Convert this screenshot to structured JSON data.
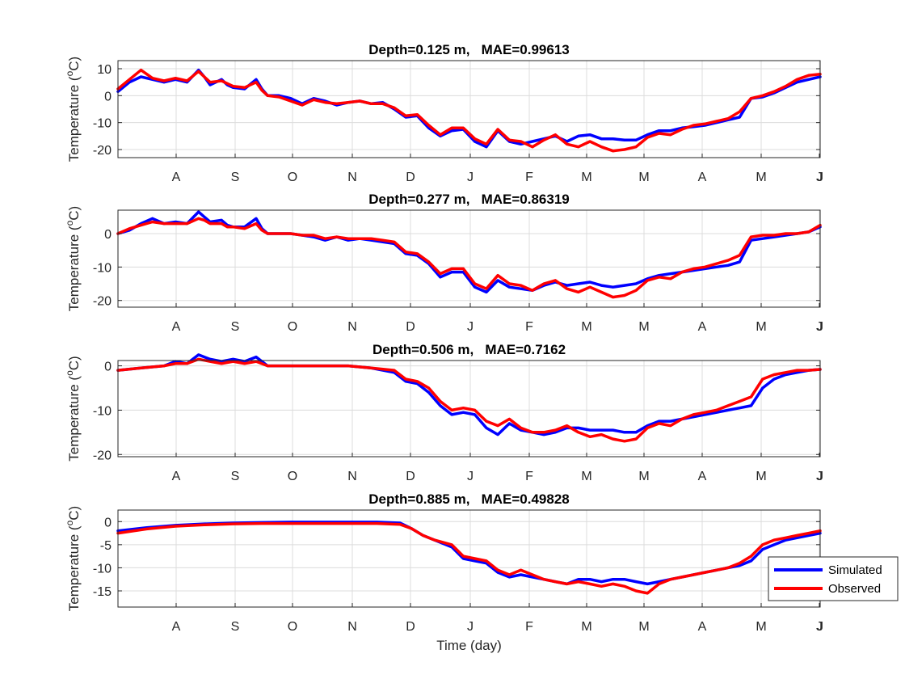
{
  "figure": {
    "xlabel": "Time (day)",
    "month_ticks": [
      "A",
      "S",
      "O",
      "N",
      "D",
      "J",
      "F",
      "M",
      "M",
      "A",
      "M",
      "J",
      "J"
    ],
    "colors": {
      "simulated": "#0000ff",
      "observed": "#ff0000",
      "grid": "#dcdcdc",
      "axes": "#262626"
    }
  },
  "chart_data": [
    {
      "type": "line",
      "title": "Depth=0.125 m,   MAE=0.99613",
      "ylabel": "Temperature (",
      "ylabel_sup": "o",
      "ylabel_end": "C)",
      "xlim": [
        0,
        12.2
      ],
      "ylim": [
        -23,
        13
      ],
      "yticks": [
        10,
        0,
        -10,
        -20
      ],
      "grid": true,
      "series": [
        {
          "name": "Simulated",
          "color": "#0000ff",
          "x": [
            0,
            0.2,
            0.4,
            0.6,
            0.8,
            1,
            1.2,
            1.4,
            1.5,
            1.6,
            1.8,
            1.9,
            2,
            2.2,
            2.4,
            2.5,
            2.6,
            2.8,
            3,
            3.2,
            3.4,
            3.6,
            3.8,
            4,
            4.2,
            4.4,
            4.6,
            4.8,
            5,
            5.2,
            5.4,
            5.6,
            5.8,
            6,
            6.2,
            6.4,
            6.6,
            6.8,
            7,
            7.2,
            7.4,
            7.6,
            7.8,
            8,
            8.2,
            8.4,
            8.6,
            8.8,
            9,
            9.2,
            9.4,
            9.6,
            9.8,
            10,
            10.2,
            10.4,
            10.6,
            10.8,
            11,
            11.2,
            11.4,
            11.6,
            11.8,
            12,
            12.2
          ],
          "y": [
            1.5,
            5,
            7,
            6,
            5,
            6,
            5,
            9.5,
            7,
            4,
            6,
            4,
            3,
            2.5,
            6,
            2.5,
            0,
            0,
            -1,
            -3,
            -1,
            -2,
            -3.5,
            -2.5,
            -2,
            -3,
            -2.5,
            -5,
            -8,
            -7.5,
            -12,
            -15,
            -13,
            -12.5,
            -17,
            -19,
            -13,
            -17,
            -18,
            -17,
            -16,
            -15,
            -17,
            -15,
            -14.5,
            -16,
            -16,
            -16.5,
            -16.5,
            -14.5,
            -13,
            -13,
            -12,
            -11.5,
            -11,
            -10,
            -9,
            -8,
            -1,
            -0.5,
            1,
            3,
            5,
            6,
            7
          ]
        },
        {
          "name": "Observed",
          "color": "#ff0000",
          "x": [
            0,
            0.2,
            0.4,
            0.6,
            0.8,
            1,
            1.2,
            1.4,
            1.5,
            1.6,
            1.8,
            1.9,
            2,
            2.2,
            2.4,
            2.5,
            2.6,
            2.8,
            3,
            3.2,
            3.4,
            3.6,
            3.8,
            4,
            4.2,
            4.4,
            4.6,
            4.8,
            5,
            5.2,
            5.4,
            5.6,
            5.8,
            6,
            6.2,
            6.4,
            6.6,
            6.8,
            7,
            7.2,
            7.4,
            7.6,
            7.8,
            8,
            8.2,
            8.4,
            8.6,
            8.8,
            9,
            9.2,
            9.4,
            9.6,
            9.8,
            10,
            10.2,
            10.4,
            10.6,
            10.8,
            11,
            11.2,
            11.4,
            11.6,
            11.8,
            12,
            12.2
          ],
          "y": [
            2.5,
            6,
            9.5,
            6.5,
            5.5,
            6.5,
            5.5,
            9,
            7,
            5,
            5.5,
            4.5,
            3.5,
            3,
            5,
            2,
            0,
            -0.5,
            -2,
            -3.5,
            -1.5,
            -2.5,
            -3,
            -2.5,
            -2,
            -3,
            -3,
            -4.5,
            -7.5,
            -7,
            -11,
            -14.5,
            -12,
            -12,
            -16,
            -18,
            -12.5,
            -16.5,
            -17,
            -19,
            -16.5,
            -14.5,
            -18,
            -19,
            -17,
            -19,
            -20.5,
            -20,
            -19,
            -15.5,
            -14,
            -14.5,
            -12.5,
            -11,
            -10.5,
            -9.5,
            -8.5,
            -6,
            -1,
            0,
            1.5,
            3.5,
            6,
            7.5,
            8
          ]
        }
      ]
    },
    {
      "type": "line",
      "title": "Depth=0.277 m,   MAE=0.86319",
      "ylabel": "Temperature (",
      "ylabel_sup": "o",
      "ylabel_end": "C)",
      "xlim": [
        0,
        12.2
      ],
      "ylim": [
        -22,
        7
      ],
      "yticks": [
        0,
        -10,
        -20
      ],
      "grid": true,
      "series": [
        {
          "name": "Simulated",
          "color": "#0000ff",
          "x": [
            0,
            0.2,
            0.4,
            0.6,
            0.8,
            1,
            1.2,
            1.4,
            1.5,
            1.6,
            1.8,
            1.9,
            2,
            2.2,
            2.4,
            2.5,
            2.6,
            2.8,
            3,
            3.2,
            3.4,
            3.6,
            3.8,
            4,
            4.2,
            4.4,
            4.6,
            4.8,
            5,
            5.2,
            5.4,
            5.6,
            5.8,
            6,
            6.2,
            6.4,
            6.6,
            6.8,
            7,
            7.2,
            7.4,
            7.6,
            7.8,
            8,
            8.2,
            8.4,
            8.6,
            8.8,
            9,
            9.2,
            9.4,
            9.6,
            9.8,
            10,
            10.2,
            10.4,
            10.6,
            10.8,
            11,
            11.2,
            11.4,
            11.6,
            11.8,
            12,
            12.2
          ],
          "y": [
            0,
            1,
            3,
            4.5,
            3,
            3.5,
            3,
            6.5,
            5,
            3.5,
            4,
            2.5,
            2,
            2,
            4.5,
            1.5,
            0,
            0,
            0,
            -0.5,
            -1,
            -2,
            -1,
            -2,
            -1.5,
            -2,
            -2.5,
            -3,
            -6,
            -6.5,
            -9,
            -13,
            -11.5,
            -11.5,
            -16,
            -17.5,
            -14,
            -16,
            -16.5,
            -17,
            -15.5,
            -14.5,
            -15.5,
            -15,
            -14.5,
            -15.5,
            -16,
            -15.5,
            -15,
            -13.5,
            -12.5,
            -12,
            -11.5,
            -11,
            -10.5,
            -10,
            -9.5,
            -8.5,
            -2,
            -1.5,
            -1,
            -0.5,
            0,
            0.5,
            2
          ]
        },
        {
          "name": "Observed",
          "color": "#ff0000",
          "x": [
            0,
            0.2,
            0.4,
            0.6,
            0.8,
            1,
            1.2,
            1.4,
            1.5,
            1.6,
            1.8,
            1.9,
            2,
            2.2,
            2.4,
            2.5,
            2.6,
            2.8,
            3,
            3.2,
            3.4,
            3.6,
            3.8,
            4,
            4.2,
            4.4,
            4.6,
            4.8,
            5,
            5.2,
            5.4,
            5.6,
            5.8,
            6,
            6.2,
            6.4,
            6.6,
            6.8,
            7,
            7.2,
            7.4,
            7.6,
            7.8,
            8,
            8.2,
            8.4,
            8.6,
            8.8,
            9,
            9.2,
            9.4,
            9.6,
            9.8,
            10,
            10.2,
            10.4,
            10.6,
            10.8,
            11,
            11.2,
            11.4,
            11.6,
            11.8,
            12,
            12.2
          ],
          "y": [
            0,
            1.5,
            2.5,
            3.5,
            3,
            3,
            3,
            4.5,
            4,
            3,
            3,
            2,
            2,
            1.5,
            3,
            1,
            0,
            0,
            0,
            -0.5,
            -0.5,
            -1.5,
            -1,
            -1.5,
            -1.5,
            -1.5,
            -2,
            -2.5,
            -5.5,
            -6,
            -8.5,
            -12,
            -10.5,
            -10.5,
            -15,
            -16.5,
            -12.5,
            -15,
            -15.5,
            -17,
            -15,
            -14,
            -16.5,
            -17.5,
            -16,
            -17.5,
            -19,
            -18.5,
            -17,
            -14,
            -13,
            -13.5,
            -11.5,
            -10.5,
            -10,
            -9,
            -8,
            -6.5,
            -1,
            -0.5,
            -0.5,
            0,
            0,
            0.5,
            2.5
          ]
        }
      ]
    },
    {
      "type": "line",
      "title": "Depth=0.506 m,   MAE=0.7162",
      "ylabel": "Temperature (",
      "ylabel_sup": "o",
      "ylabel_end": "C)",
      "xlim": [
        0,
        12.2
      ],
      "ylim": [
        -20.5,
        1.2
      ],
      "yticks": [
        0,
        -10,
        -20
      ],
      "grid": true,
      "series": [
        {
          "name": "Simulated",
          "color": "#0000ff",
          "x": [
            0,
            0.4,
            0.8,
            1.0,
            1.2,
            1.4,
            1.6,
            1.8,
            2.0,
            2.2,
            2.4,
            2.6,
            3.0,
            3.5,
            4.0,
            4.4,
            4.8,
            5.0,
            5.2,
            5.4,
            5.6,
            5.8,
            6.0,
            6.2,
            6.4,
            6.6,
            6.8,
            7.0,
            7.2,
            7.4,
            7.6,
            7.8,
            8.0,
            8.2,
            8.4,
            8.6,
            8.8,
            9.0,
            9.2,
            9.4,
            9.6,
            9.8,
            10.0,
            10.2,
            10.4,
            10.6,
            10.8,
            11.0,
            11.2,
            11.4,
            11.6,
            11.8,
            12.0,
            12.2
          ],
          "y": [
            -1,
            -0.5,
            0,
            1,
            0.5,
            2.5,
            1.5,
            1,
            1.5,
            1,
            2,
            0,
            0,
            0,
            0,
            -0.5,
            -1.5,
            -3.5,
            -4,
            -6,
            -9,
            -11,
            -10.5,
            -11,
            -14,
            -15.5,
            -13,
            -14.5,
            -15,
            -15.5,
            -15,
            -14,
            -14,
            -14.5,
            -14.5,
            -14.5,
            -15,
            -15,
            -13.5,
            -12.5,
            -12.5,
            -12,
            -11.5,
            -11,
            -10.5,
            -10,
            -9.5,
            -9,
            -5,
            -3,
            -2,
            -1.5,
            -1,
            -0.8
          ]
        },
        {
          "name": "Observed",
          "color": "#ff0000",
          "x": [
            0,
            0.4,
            0.8,
            1.0,
            1.2,
            1.4,
            1.6,
            1.8,
            2.0,
            2.2,
            2.4,
            2.6,
            3.0,
            3.5,
            4.0,
            4.4,
            4.8,
            5.0,
            5.2,
            5.4,
            5.6,
            5.8,
            6.0,
            6.2,
            6.4,
            6.6,
            6.8,
            7.0,
            7.2,
            7.4,
            7.6,
            7.8,
            8.0,
            8.2,
            8.4,
            8.6,
            8.8,
            9.0,
            9.2,
            9.4,
            9.6,
            9.8,
            10.0,
            10.2,
            10.4,
            10.6,
            10.8,
            11.0,
            11.2,
            11.4,
            11.6,
            11.8,
            12.0,
            12.2
          ],
          "y": [
            -1,
            -0.5,
            0,
            0.5,
            0.5,
            1.5,
            1,
            0.5,
            1,
            0.5,
            1,
            0,
            0,
            0,
            0,
            -0.5,
            -1,
            -3,
            -3.5,
            -5,
            -8,
            -10,
            -9.5,
            -10,
            -12.5,
            -13.5,
            -12,
            -14,
            -15,
            -15,
            -14.5,
            -13.5,
            -15,
            -16,
            -15.5,
            -16.5,
            -17,
            -16.5,
            -14,
            -13,
            -13.5,
            -12,
            -11,
            -10.5,
            -10,
            -9,
            -8,
            -7,
            -3,
            -2,
            -1.5,
            -1,
            -1,
            -0.8
          ]
        }
      ]
    },
    {
      "type": "line",
      "title": "Depth=0.885 m,   MAE=0.49828",
      "ylabel": "Temperature (",
      "ylabel_sup": "o",
      "ylabel_end": "C)",
      "xlim": [
        0,
        12.2
      ],
      "ylim": [
        -18.5,
        2.5
      ],
      "yticks": [
        0,
        -5,
        -10,
        -15
      ],
      "grid": true,
      "series": [
        {
          "name": "Simulated",
          "color": "#0000ff",
          "x": [
            0,
            0.5,
            1,
            1.5,
            2,
            2.5,
            3,
            3.5,
            4,
            4.5,
            4.9,
            5.1,
            5.3,
            5.5,
            5.8,
            6.0,
            6.2,
            6.4,
            6.6,
            6.8,
            7.0,
            7.2,
            7.4,
            7.6,
            7.8,
            8.0,
            8.2,
            8.4,
            8.6,
            8.8,
            9.0,
            9.2,
            9.4,
            9.6,
            9.8,
            10.0,
            10.2,
            10.4,
            10.6,
            10.8,
            11.0,
            11.2,
            11.4,
            11.6,
            11.8,
            12.0,
            12.2
          ],
          "y": [
            -2,
            -1.3,
            -0.8,
            -0.5,
            -0.3,
            -0.2,
            -0.1,
            -0.1,
            -0.1,
            -0.1,
            -0.3,
            -1.5,
            -3,
            -4,
            -5.5,
            -8,
            -8.5,
            -9,
            -11,
            -12,
            -11.5,
            -12,
            -12.5,
            -13,
            -13.5,
            -12.5,
            -12.5,
            -13,
            -12.5,
            -12.5,
            -13,
            -13.5,
            -13,
            -12.5,
            -12,
            -11.5,
            -11,
            -10.5,
            -10,
            -9.5,
            -8.5,
            -6,
            -5,
            -4,
            -3.5,
            -3,
            -2.5
          ]
        },
        {
          "name": "Observed",
          "color": "#ff0000",
          "x": [
            0,
            0.5,
            1,
            1.5,
            2,
            2.5,
            3,
            3.5,
            4,
            4.5,
            4.9,
            5.1,
            5.3,
            5.5,
            5.8,
            6.0,
            6.2,
            6.4,
            6.6,
            6.8,
            7.0,
            7.2,
            7.4,
            7.6,
            7.8,
            8.0,
            8.2,
            8.4,
            8.6,
            8.8,
            9.0,
            9.2,
            9.4,
            9.6,
            9.8,
            10.0,
            10.2,
            10.4,
            10.6,
            10.8,
            11.0,
            11.2,
            11.4,
            11.6,
            11.8,
            12.0,
            12.2
          ],
          "y": [
            -2.5,
            -1.6,
            -1,
            -0.7,
            -0.5,
            -0.4,
            -0.4,
            -0.4,
            -0.4,
            -0.4,
            -0.6,
            -1.5,
            -3,
            -4,
            -5,
            -7.5,
            -8,
            -8.5,
            -10.5,
            -11.5,
            -10.5,
            -11.5,
            -12.5,
            -13,
            -13.5,
            -13,
            -13.5,
            -14,
            -13.5,
            -14,
            -15,
            -15.5,
            -13.5,
            -12.5,
            -12,
            -11.5,
            -11,
            -10.5,
            -10,
            -9,
            -7.5,
            -5,
            -4,
            -3.5,
            -3,
            -2.5,
            -2
          ]
        }
      ]
    }
  ],
  "legend": {
    "location": "bottom-right",
    "entries": [
      {
        "label": "Simulated",
        "color": "#0000ff"
      },
      {
        "label": "Observed",
        "color": "#ff0000"
      }
    ]
  }
}
